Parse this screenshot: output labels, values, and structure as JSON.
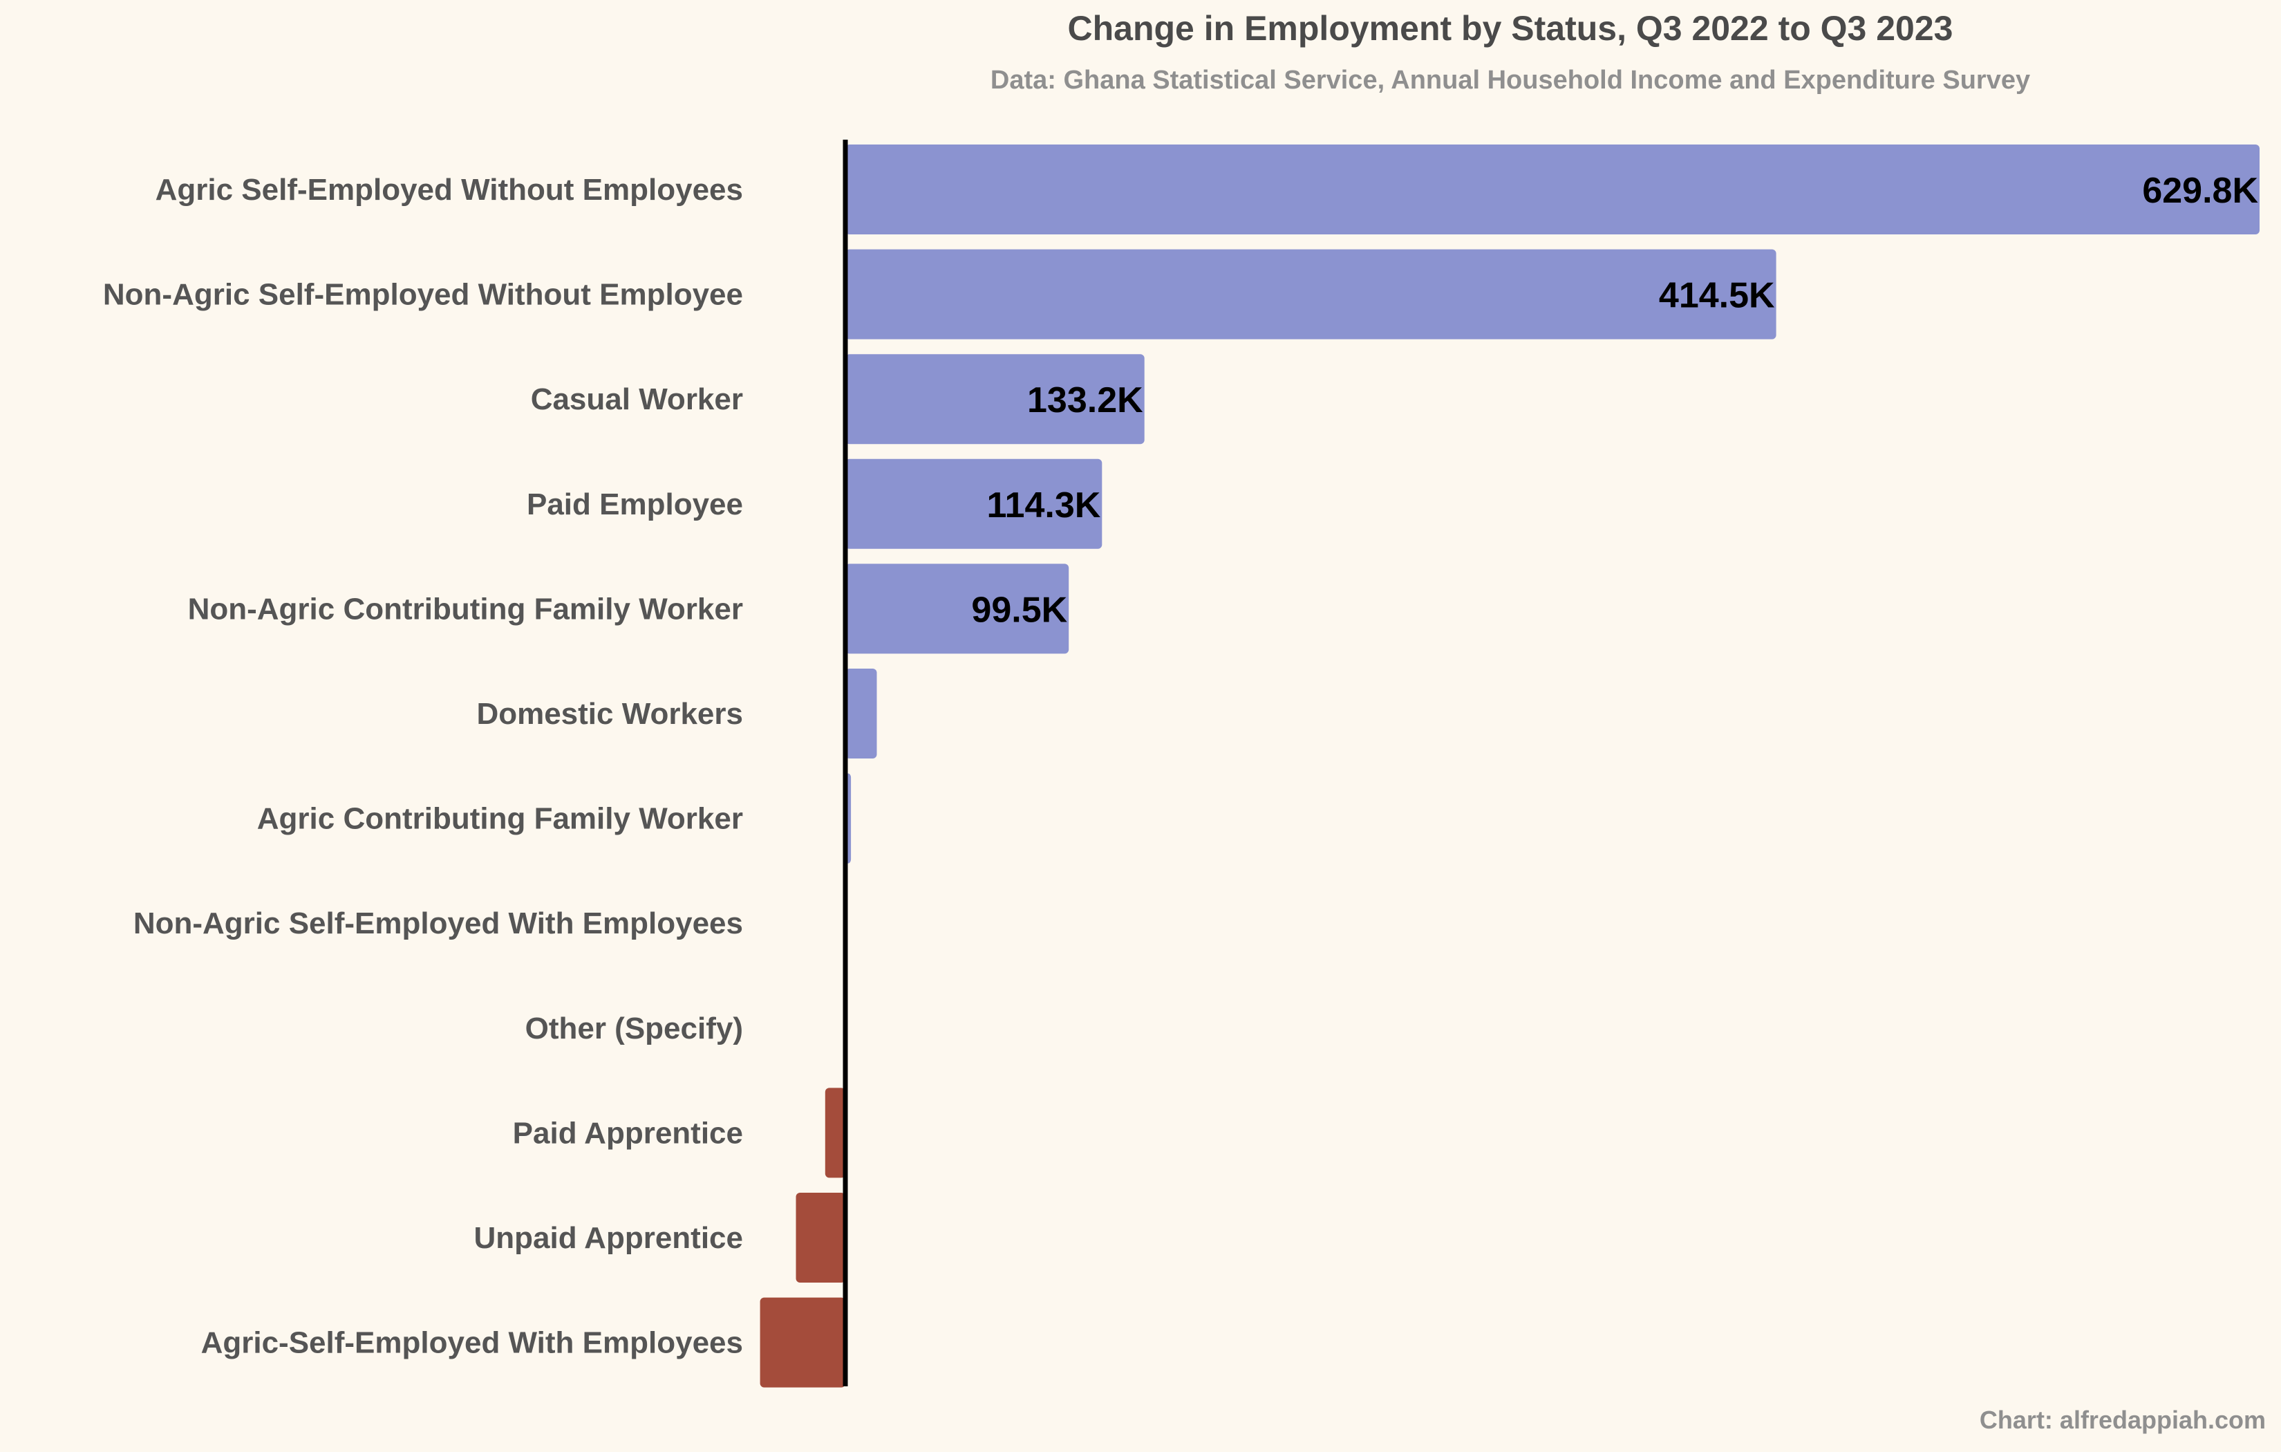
{
  "chart_data": {
    "type": "bar",
    "orientation": "horizontal",
    "title": "Change in Employment by Status, Q3 2022 to Q3 2023",
    "subtitle": "Data: Ghana Statistical Service, Annual Household Income and Expenditure Survey",
    "caption": "Chart: alfredappiah.com",
    "xlim": [
      -130000,
      2050000
    ],
    "categories": [
      "Agric Self-Employed Without Employees",
      "Non-Agric Self-Employed Without Employee",
      "Casual Worker",
      "Paid Employee",
      "Non-Agric Contributing Family Worker",
      "Domestic Workers",
      "Agric Contributing Family Worker",
      "Non-Agric Self-Employed With Employees",
      "Other (Specify)",
      "Paid Apprentice",
      "Unpaid Apprentice",
      "Agric-Self-Employed With Employees"
    ],
    "values": [
      629800,
      414500,
      133200,
      114300,
      99500,
      14000,
      2500,
      0,
      0,
      -9000,
      -22000,
      -38000
    ],
    "data_labels": [
      "629.8K",
      "414.5K",
      "133.2K",
      "114.3K",
      "99.5K",
      "",
      "",
      "",
      "",
      "",
      "",
      ""
    ],
    "colors": {
      "positive": "#8b93d0",
      "negative": "#a44c3b",
      "zero_line": "#000000",
      "title": "#4a4a4a",
      "subtitle": "#8f8f8f",
      "category_label": "#555555",
      "value_label": "#000000",
      "background": "#fdf8ef"
    },
    "grid": false,
    "legend": "none"
  }
}
